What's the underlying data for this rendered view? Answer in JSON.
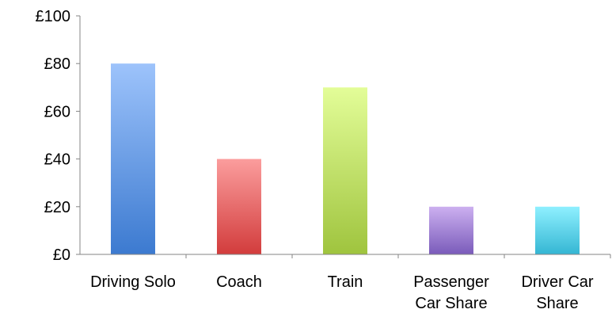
{
  "chart_data": {
    "type": "bar",
    "title": "",
    "xlabel": "",
    "ylabel": "",
    "y_unit_prefix": "£",
    "ylim": [
      0,
      100
    ],
    "y_ticks": [
      0,
      20,
      40,
      60,
      80,
      100
    ],
    "y_tick_labels": [
      "£0",
      "£20",
      "£40",
      "£60",
      "£80",
      "£100"
    ],
    "grid": false,
    "legend": "none",
    "categories": [
      [
        "Driving Solo"
      ],
      [
        "Coach"
      ],
      [
        "Train"
      ],
      [
        "Passenger",
        "Car Share"
      ],
      [
        "Driver Car",
        "Share"
      ]
    ],
    "values": [
      80,
      40,
      70,
      20,
      20
    ],
    "colors": [
      {
        "top": "#9dc3fb",
        "bottom": "#3c7ad0"
      },
      {
        "top": "#fb9d9d",
        "bottom": "#d23c3c"
      },
      {
        "top": "#e3fd98",
        "bottom": "#9fc43e"
      },
      {
        "top": "#ccb0f0",
        "bottom": "#7a5bba"
      },
      {
        "top": "#8ff0ff",
        "bottom": "#34b6d3"
      }
    ]
  }
}
